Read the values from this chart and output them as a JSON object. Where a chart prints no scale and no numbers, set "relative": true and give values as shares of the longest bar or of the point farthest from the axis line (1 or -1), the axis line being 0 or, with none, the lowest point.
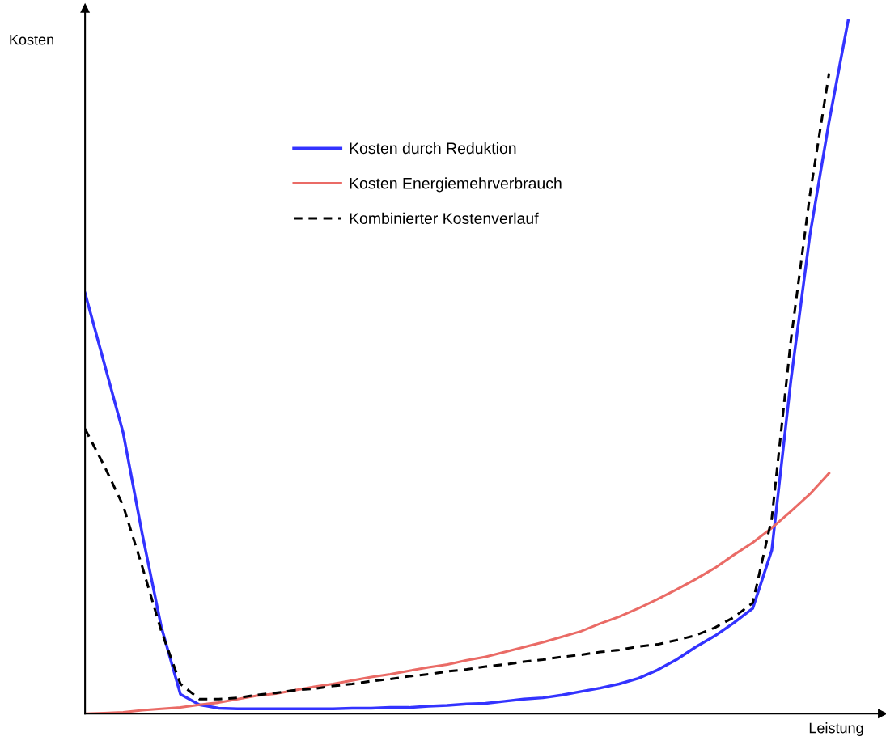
{
  "chart_data": {
    "type": "line",
    "relative": true,
    "xlabel": "Leistung",
    "ylabel": "Kosten",
    "legend": "top",
    "tick_labels": false,
    "categories": [
      null,
      null,
      null,
      null,
      null,
      null,
      null,
      null,
      null,
      null,
      null,
      null,
      null,
      null,
      null,
      null,
      null,
      null,
      null,
      null,
      null,
      null,
      null,
      null,
      null,
      null,
      null,
      null,
      null,
      null,
      null,
      null,
      null,
      null,
      null,
      null,
      null,
      null,
      null,
      null,
      null
    ],
    "series": [
      {
        "name": "Kosten durch Reduktion",
        "color": "#3333ff",
        "line_style": "solid",
        "values": [
          0.607,
          0.506,
          0.405,
          0.259,
          0.125,
          0.028,
          0.013,
          0.008,
          0.007,
          0.007,
          0.007,
          0.007,
          0.007,
          0.007,
          0.008,
          0.008,
          0.009,
          0.009,
          0.011,
          0.012,
          0.014,
          0.015,
          0.018,
          0.021,
          0.023,
          0.027,
          0.032,
          0.037,
          0.043,
          0.051,
          0.063,
          0.078,
          0.096,
          0.112,
          0.131,
          0.152,
          0.236,
          0.481,
          0.691,
          0.854,
          1.0
        ]
      },
      {
        "name": "Kosten Energiemehrverbrauch",
        "color": "#ea6b66",
        "line_style": "solid",
        "values": [
          0,
          0.001,
          0.002,
          0.005,
          0.007,
          0.009,
          0.013,
          0.016,
          0.021,
          0.026,
          0.029,
          0.034,
          0.039,
          0.043,
          0.048,
          0.053,
          0.057,
          0.062,
          0.067,
          0.071,
          0.077,
          0.082,
          0.089,
          0.096,
          0.103,
          0.111,
          0.119,
          0.13,
          0.14,
          0.152,
          0.165,
          0.179,
          0.194,
          0.21,
          0.229,
          0.247,
          0.268,
          0.292,
          0.317,
          0.347,
          null
        ]
      },
      {
        "name": "Kombinierter Kostenverlauf",
        "color": "#000000",
        "line_style": "dashed",
        "values": [
          0.411,
          0.358,
          0.3,
          0.212,
          0.119,
          0.043,
          0.021,
          0.021,
          0.023,
          0.027,
          0.03,
          0.034,
          0.036,
          0.04,
          0.043,
          0.047,
          0.05,
          0.054,
          0.057,
          0.061,
          0.064,
          0.068,
          0.071,
          0.075,
          0.078,
          0.082,
          0.085,
          0.089,
          0.092,
          0.097,
          0.1,
          0.106,
          0.113,
          0.124,
          0.139,
          0.16,
          0.282,
          0.539,
          0.749,
          0.924,
          null
        ]
      }
    ]
  }
}
